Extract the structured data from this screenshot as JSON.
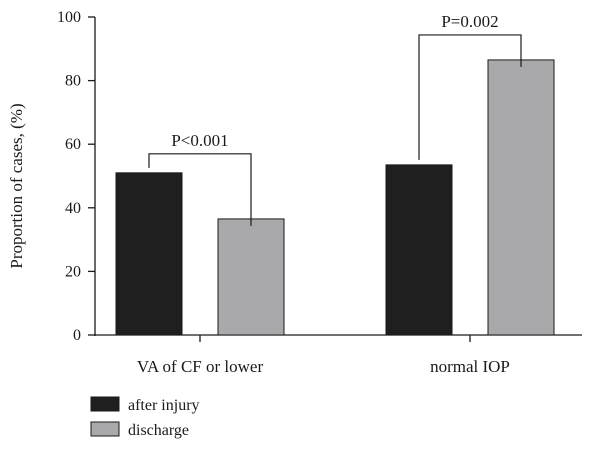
{
  "chart_data": {
    "type": "bar",
    "categories": [
      "VA of CF or lower",
      "normal IOP"
    ],
    "series": [
      {
        "name": "after injury",
        "values": [
          51,
          53.5
        ],
        "color": "#1f1f1f"
      },
      {
        "name": "discharge",
        "values": [
          36.5,
          86.5
        ],
        "color": "#a9a9ab"
      }
    ],
    "ylabel": "Proportion of cases, (%)",
    "xlabel": "",
    "ylim": [
      0,
      100
    ],
    "yticks": [
      0,
      20,
      40,
      60,
      80,
      100
    ],
    "annotations": [
      {
        "category_index": 0,
        "text": "P<0.001"
      },
      {
        "category_index": 1,
        "text": "P=0.002"
      }
    ],
    "legend_position": "bottom-left",
    "grid": false
  }
}
